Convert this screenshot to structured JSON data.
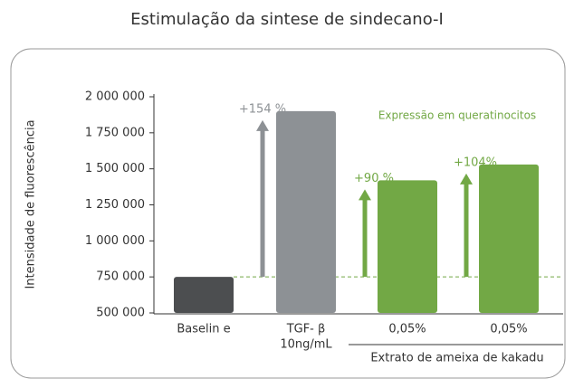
{
  "chart_data": {
    "type": "bar",
    "title": "Estimulação da sintese de sindecano-I",
    "y_label": "Intensidade de fluorescência",
    "categories": [
      "Baselin e",
      "TGF- β",
      "0,05%",
      "0,05%"
    ],
    "category_sublabels": [
      null,
      "10ng/mL",
      null,
      null
    ],
    "group_label": "Extrato de ameixa de kakadu",
    "values": [
      750000,
      1900000,
      1420000,
      1530000
    ],
    "colors": [
      "#4c4e50",
      "#8d9195",
      "#72a845",
      "#72a845"
    ],
    "bar_labels": [
      null,
      "+154 %",
      "+90 %",
      "+104%"
    ],
    "bar_label_colors": [
      null,
      "#8d9195",
      "#72a845",
      "#72a845"
    ],
    "annotation": "Expressão em queratinocitos",
    "ylim": [
      500000,
      2000000
    ],
    "yticks": [
      {
        "value": 500000,
        "label": "500 000"
      },
      {
        "value": 750000,
        "label": "750 000"
      },
      {
        "value": 1000000,
        "label": "1 000 000"
      },
      {
        "value": 1250000,
        "label": "1 250 000"
      },
      {
        "value": 1500000,
        "label": "1 500 000"
      },
      {
        "value": 1750000,
        "label": "1 750 000"
      },
      {
        "value": 2000000,
        "label": "2 000 000"
      }
    ],
    "grid": false
  }
}
